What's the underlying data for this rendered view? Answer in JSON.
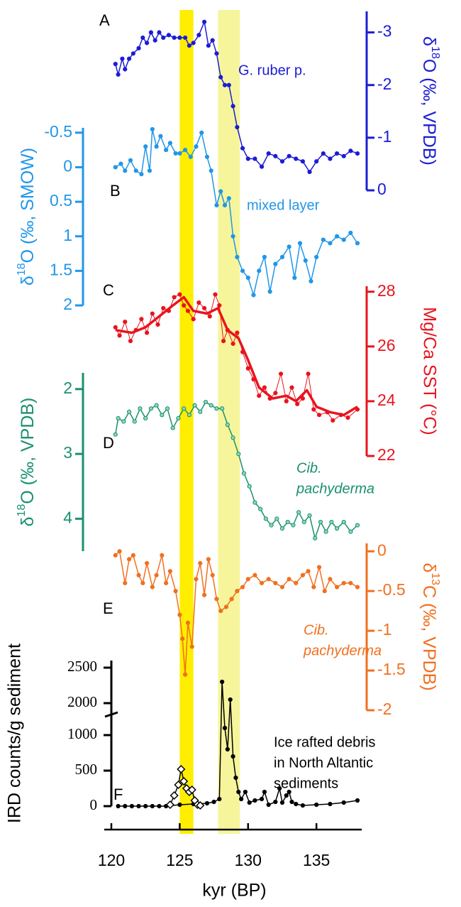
{
  "chart_data": [
    {
      "type": "line",
      "panel_label": "A",
      "ylabel": "δ18O (‰, VPDB)",
      "y_axis": "right",
      "annotation": [
        "G. ruber p."
      ],
      "xlim": [
        120,
        138
      ],
      "ylim": [
        0,
        -3.4
      ],
      "yticks": [
        -3,
        -2,
        -1,
        0
      ],
      "x": [
        120.3,
        120.5,
        120.8,
        121.0,
        121.3,
        121.6,
        122.0,
        122.3,
        122.6,
        122.9,
        123.2,
        123.5,
        123.8,
        124.2,
        124.6,
        125.0,
        125.4,
        125.7,
        126.0,
        126.4,
        126.8,
        127.1,
        127.4,
        127.7,
        128.0,
        128.3,
        128.6,
        128.9,
        129.2,
        129.6,
        130.0,
        130.5,
        131.0,
        131.5,
        132.0,
        132.5,
        133.0,
        133.5,
        134.0,
        134.5,
        135.0,
        135.5,
        136.0,
        136.5,
        137.0,
        137.5,
        138.0
      ],
      "series": [
        {
          "color": "#1c1cd6",
          "marker": "circle",
          "line_width": 1.5,
          "values": [
            -2.4,
            -2.2,
            -2.5,
            -2.3,
            -2.5,
            -2.6,
            -2.7,
            -2.9,
            -2.8,
            -3.0,
            -2.85,
            -3.0,
            -2.9,
            -2.95,
            -2.9,
            -2.9,
            -2.9,
            -2.75,
            -2.8,
            -2.95,
            -3.2,
            -2.75,
            -2.85,
            -2.6,
            -2.15,
            -2.0,
            -2.0,
            -1.6,
            -1.2,
            -0.8,
            -0.6,
            -0.6,
            -0.45,
            -0.7,
            -0.65,
            -0.55,
            -0.65,
            -0.6,
            -0.55,
            -0.35,
            -0.55,
            -0.7,
            -0.6,
            -0.7,
            -0.65,
            -0.75,
            -0.7
          ]
        }
      ]
    },
    {
      "type": "line",
      "panel_label": "B",
      "ylabel": "δ18O (‰, SMOW)",
      "y_axis": "left",
      "annotation": [
        "mixed layer"
      ],
      "xlim": [
        120,
        138
      ],
      "ylim": [
        2,
        -0.57
      ],
      "yticks": [
        -0.5,
        0,
        0.5,
        1,
        1.5,
        2
      ],
      "x": [
        120.3,
        120.7,
        121.0,
        121.4,
        121.8,
        122.2,
        122.5,
        122.8,
        123.0,
        123.3,
        123.6,
        124.0,
        124.3,
        124.7,
        125.0,
        125.4,
        125.8,
        126.2,
        126.6,
        127.0,
        127.3,
        127.7,
        128.0,
        128.3,
        128.6,
        128.9,
        129.2,
        129.6,
        130.0,
        130.4,
        130.8,
        131.2,
        131.6,
        132.0,
        132.5,
        133.0,
        133.4,
        133.8,
        134.2,
        134.6,
        135.0,
        135.5,
        136.0,
        136.5,
        137.0,
        137.5,
        138.0
      ],
      "series": [
        {
          "color": "#2196e8",
          "marker": "circle",
          "line_width": 1.5,
          "values": [
            0,
            -0.05,
            0.05,
            -0.1,
            0.05,
            0.1,
            -0.3,
            0.05,
            -0.55,
            -0.3,
            -0.45,
            -0.25,
            -0.35,
            -0.2,
            -0.2,
            -0.25,
            -0.15,
            -0.3,
            -0.5,
            -0.15,
            0.05,
            0.55,
            0.35,
            0.55,
            0.45,
            1.0,
            1.3,
            1.5,
            1.6,
            1.85,
            1.5,
            1.3,
            1.8,
            1.4,
            1.3,
            1.15,
            1.6,
            1.1,
            1.35,
            1.65,
            1.3,
            1.05,
            1.1,
            1.0,
            1.05,
            0.95,
            1.1
          ]
        }
      ]
    },
    {
      "type": "line",
      "panel_label": "C",
      "ylabel": "Mg/Ca SST (°C)",
      "y_axis": "right",
      "xlim": [
        120,
        138
      ],
      "ylim": [
        22,
        28.2
      ],
      "yticks": [
        22,
        24,
        26,
        28
      ],
      "x": [
        120.3,
        120.6,
        121.0,
        121.4,
        121.8,
        122.2,
        122.6,
        123.0,
        123.4,
        123.8,
        124.2,
        124.6,
        125.0,
        125.3,
        125.6,
        126.0,
        126.4,
        126.8,
        127.2,
        127.6,
        127.9,
        128.2,
        128.5,
        128.9,
        129.2,
        129.6,
        130.0,
        130.4,
        130.8,
        131.2,
        131.6,
        132.0,
        132.4,
        132.8,
        133.2,
        133.6,
        134.0,
        134.4,
        134.8,
        135.2,
        135.8,
        136.2,
        136.8,
        137.3,
        138.0
      ],
      "series": [
        {
          "color": "#e8141e",
          "marker": "circle",
          "line_width": 1,
          "values": [
            26.7,
            26.4,
            26.9,
            26.2,
            26.6,
            27.0,
            26.5,
            27.2,
            26.8,
            27.4,
            27.3,
            27.8,
            27.9,
            27.5,
            27.3,
            27.0,
            27.6,
            27.4,
            27.1,
            27.9,
            27.5,
            26.2,
            26.6,
            26.1,
            26.5,
            25.8,
            25.2,
            24.8,
            24.2,
            24.5,
            24.1,
            24.3,
            25.0,
            24.0,
            24.5,
            23.9,
            24.1,
            25.0,
            23.7,
            23.5,
            23.6,
            23.3,
            23.5,
            23.4,
            23.7
          ]
        },
        {
          "color": "#e8141e",
          "marker": "none",
          "line_width": 3.5,
          "x": [
            120.3,
            121.5,
            122.5,
            123.5,
            124.5,
            125.3,
            126.0,
            127.0,
            127.8,
            128.5,
            129.3,
            130.0,
            130.8,
            131.8,
            132.8,
            133.5,
            134.3,
            135.0,
            136.0,
            137.0,
            138.0
          ],
          "values": [
            26.6,
            26.5,
            26.7,
            27.1,
            27.5,
            27.8,
            27.3,
            27.2,
            27.4,
            26.6,
            26.3,
            25.5,
            24.5,
            24.1,
            24.2,
            24.0,
            24.4,
            23.8,
            23.6,
            23.5,
            23.8
          ]
        }
      ]
    },
    {
      "type": "line",
      "panel_label": "D",
      "ylabel": "δ18O (‰, VPDB)",
      "y_axis": "left",
      "annotation": [
        "Cib.",
        "pachyderma"
      ],
      "xlim": [
        120,
        138
      ],
      "ylim": [
        4.5,
        1.75
      ],
      "yticks": [
        2,
        3,
        4
      ],
      "x": [
        120.3,
        120.5,
        120.9,
        121.3,
        121.7,
        122.1,
        122.5,
        122.9,
        123.3,
        123.7,
        124.1,
        124.5,
        124.9,
        125.3,
        125.7,
        126.1,
        126.5,
        126.9,
        127.3,
        127.7,
        128.1,
        128.5,
        128.9,
        129.3,
        129.7,
        130.1,
        130.5,
        130.9,
        131.3,
        131.7,
        132.1,
        132.5,
        132.9,
        133.3,
        133.7,
        134.1,
        134.5,
        134.9,
        135.3,
        135.7,
        136.1,
        136.5,
        137.0,
        137.5,
        138.0
      ],
      "series": [
        {
          "color": "#1a9070",
          "marker": "circle",
          "line_width": 1.5,
          "values": [
            2.7,
            2.45,
            2.5,
            2.35,
            2.5,
            2.3,
            2.45,
            2.3,
            2.25,
            2.4,
            2.3,
            2.6,
            2.45,
            2.3,
            2.4,
            2.25,
            2.35,
            2.2,
            2.25,
            2.3,
            2.3,
            2.55,
            2.75,
            3.0,
            3.3,
            3.5,
            3.75,
            3.85,
            4.0,
            4.1,
            4.0,
            4.15,
            4.05,
            4.1,
            3.9,
            4.05,
            3.95,
            4.3,
            4.05,
            4.2,
            4.05,
            4.15,
            4.05,
            4.2,
            4.1
          ]
        }
      ]
    },
    {
      "type": "line",
      "panel_label": "E",
      "ylabel": "δ13C (‰, VPDB)",
      "y_axis": "right",
      "annotation": [
        "Cib.",
        "pachyderma"
      ],
      "xlim": [
        120,
        138
      ],
      "ylim": [
        -2,
        0.1
      ],
      "yticks": [
        -2,
        -1.5,
        -1,
        -0.5,
        0
      ],
      "x": [
        120.3,
        120.6,
        121.0,
        121.3,
        121.6,
        122.0,
        122.3,
        122.6,
        123.0,
        123.3,
        123.7,
        124.0,
        124.3,
        124.7,
        125.0,
        125.2,
        125.4,
        125.6,
        125.9,
        126.2,
        126.5,
        126.8,
        127.1,
        127.4,
        127.7,
        128.0,
        128.4,
        128.8,
        129.2,
        129.6,
        130.0,
        130.5,
        131.0,
        131.5,
        132.0,
        132.5,
        133.0,
        133.5,
        134.0,
        134.4,
        134.8,
        135.2,
        135.6,
        136.0,
        136.5,
        137.0,
        137.5,
        138.0
      ],
      "series": [
        {
          "color": "#f07020",
          "marker": "circle",
          "line_width": 1.5,
          "values": [
            -0.05,
            0.0,
            -0.4,
            -0.1,
            -0.05,
            -0.3,
            -0.4,
            -0.15,
            -0.45,
            -0.3,
            -0.05,
            -0.4,
            -0.25,
            -0.5,
            -0.8,
            -1.1,
            -1.55,
            -0.9,
            -1.2,
            -0.35,
            -0.15,
            -0.55,
            -0.1,
            -0.3,
            -0.6,
            -0.75,
            -0.7,
            -0.6,
            -0.5,
            -0.45,
            -0.35,
            -0.3,
            -0.4,
            -0.35,
            -0.4,
            -0.45,
            -0.35,
            -0.4,
            -0.3,
            -0.25,
            -0.45,
            -0.2,
            -0.5,
            -0.35,
            -0.45,
            -0.4,
            -0.4,
            -0.45
          ]
        }
      ]
    },
    {
      "type": "line",
      "panel_label": "F",
      "ylabel": "IRD counts/g sediment",
      "y_axis": "left",
      "annotation": [
        "Ice rafted debris",
        "in North Altantic",
        "sediments"
      ],
      "xlim": [
        120,
        138
      ],
      "xticks": [
        120,
        125,
        130,
        135
      ],
      "xlabel": "kyr (BP)",
      "ylim": [
        0,
        2600
      ],
      "ybreak": [
        1300,
        1850
      ],
      "yticks": [
        0,
        500,
        1000,
        2000,
        2500
      ],
      "shaded_intervals": [
        {
          "x": [
            125,
            126
          ],
          "color": "#ffee00"
        },
        {
          "x": [
            127.8,
            129.4
          ],
          "color": "#f6f59c"
        }
      ],
      "x": [
        120.5,
        121.0,
        121.5,
        122.0,
        122.5,
        123.0,
        123.5,
        124.0,
        125.0,
        126.0,
        127.0,
        127.5,
        127.9,
        128.1,
        128.3,
        128.5,
        128.7,
        128.9,
        129.1,
        129.3,
        129.5,
        129.8,
        130.1,
        130.5,
        131.0,
        131.2,
        131.5,
        132.0,
        132.3,
        132.5,
        132.8,
        133.0,
        133.2,
        133.5,
        134.0,
        135.0,
        136.0,
        137.0,
        138.0
      ],
      "series": [
        {
          "color": "#000000",
          "marker": "circle",
          "line_width": 1.5,
          "values": [
            0,
            0,
            0,
            0,
            0,
            0,
            0,
            0,
            20,
            30,
            40,
            60,
            100,
            2300,
            1100,
            800,
            1500,
            700,
            400,
            200,
            100,
            200,
            50,
            80,
            100,
            200,
            20,
            60,
            250,
            50,
            150,
            200,
            60,
            30,
            10,
            20,
            30,
            50,
            80
          ]
        },
        {
          "color": "#000000",
          "marker": "diamond",
          "line_width": 1.5,
          "x": [
            124.3,
            124.6,
            124.9,
            125.1,
            125.3,
            125.5,
            125.7,
            125.9,
            126.1,
            126.3,
            126.5
          ],
          "values": [
            20,
            150,
            300,
            520,
            350,
            250,
            200,
            230,
            80,
            20,
            10
          ]
        }
      ]
    }
  ]
}
